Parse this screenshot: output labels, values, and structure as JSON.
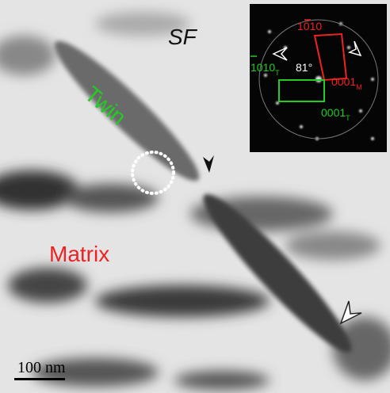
{
  "labels": {
    "sf": "SF",
    "twin": "Twin",
    "matrix": "Matrix",
    "scale_bar": "100 nm"
  },
  "inset": {
    "plane_m": "1010",
    "angle": "81°",
    "basal_m": "0001",
    "basal_m_sub": "M",
    "plane_t": "1010",
    "plane_t_sub": "T",
    "basal_t": "0001",
    "basal_t_sub": "T"
  }
}
